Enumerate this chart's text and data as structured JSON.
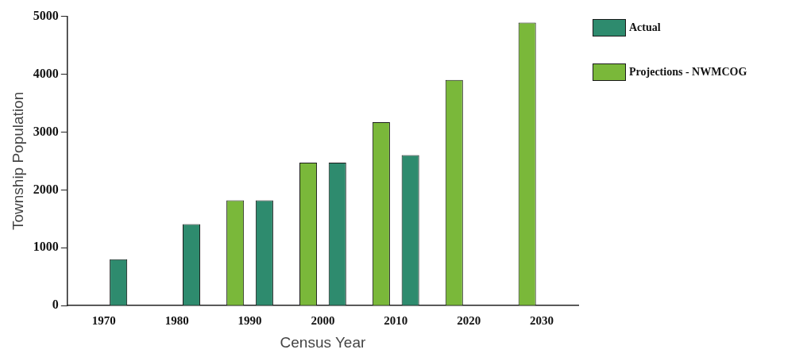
{
  "chart_data": {
    "type": "bar",
    "xlabel": "Census Year",
    "ylabel": "Township Population",
    "categories": [
      "1970",
      "1980",
      "1990",
      "2000",
      "2010",
      "2020",
      "2030"
    ],
    "series": [
      {
        "name": "Projections - NWMCOG",
        "color": "#7ab83a",
        "values": [
          null,
          null,
          1820,
          2470,
          3170,
          3900,
          4890
        ]
      },
      {
        "name": "Actual",
        "color": "#2e8b6e",
        "values": [
          800,
          1410,
          1820,
          2470,
          2600,
          null,
          null
        ]
      }
    ],
    "ylim": [
      0,
      5000
    ],
    "yticks": [
      0,
      1000,
      2000,
      3000,
      4000,
      5000
    ],
    "grid": false,
    "legend": "top right"
  }
}
